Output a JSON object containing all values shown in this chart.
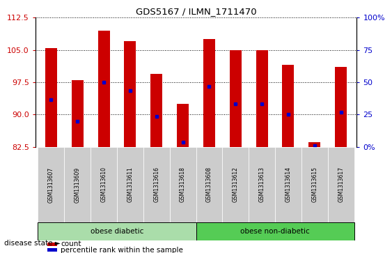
{
  "title": "GDS5167 / ILMN_1711470",
  "samples": [
    "GSM1313607",
    "GSM1313609",
    "GSM1313610",
    "GSM1313611",
    "GSM1313616",
    "GSM1313618",
    "GSM1313608",
    "GSM1313612",
    "GSM1313613",
    "GSM1313614",
    "GSM1313615",
    "GSM1313617"
  ],
  "bar_tops": [
    105.5,
    98.0,
    109.5,
    107.0,
    99.5,
    92.5,
    107.5,
    105.0,
    105.0,
    101.5,
    83.5,
    101.0
  ],
  "bar_bottom": 82.5,
  "blue_dot_values": [
    93.5,
    88.5,
    97.5,
    95.5,
    89.5,
    83.5,
    96.5,
    92.5,
    92.5,
    90.0,
    82.8,
    90.5
  ],
  "ylim_left": [
    82.5,
    112.5
  ],
  "ylim_right": [
    0,
    100
  ],
  "yticks_left": [
    82.5,
    90.0,
    97.5,
    105.0,
    112.5
  ],
  "yticks_right": [
    0,
    25,
    50,
    75,
    100
  ],
  "ytick_right_labels": [
    "0%",
    "25",
    "50",
    "75",
    "100%"
  ],
  "groups": [
    {
      "label": "obese diabetic",
      "start": 0,
      "end": 6
    },
    {
      "label": "obese non-diabetic",
      "start": 6,
      "end": 12
    }
  ],
  "group_colors": [
    "#aaddaa",
    "#55cc55"
  ],
  "bar_color": "#cc0000",
  "dot_color": "#0000cc",
  "axis_left_color": "#cc0000",
  "axis_right_color": "#0000cc",
  "bg_xtick": "#cccccc",
  "disease_state_label": "disease state",
  "legend_count": "count",
  "legend_percentile": "percentile rank within the sample",
  "bar_width": 0.45
}
